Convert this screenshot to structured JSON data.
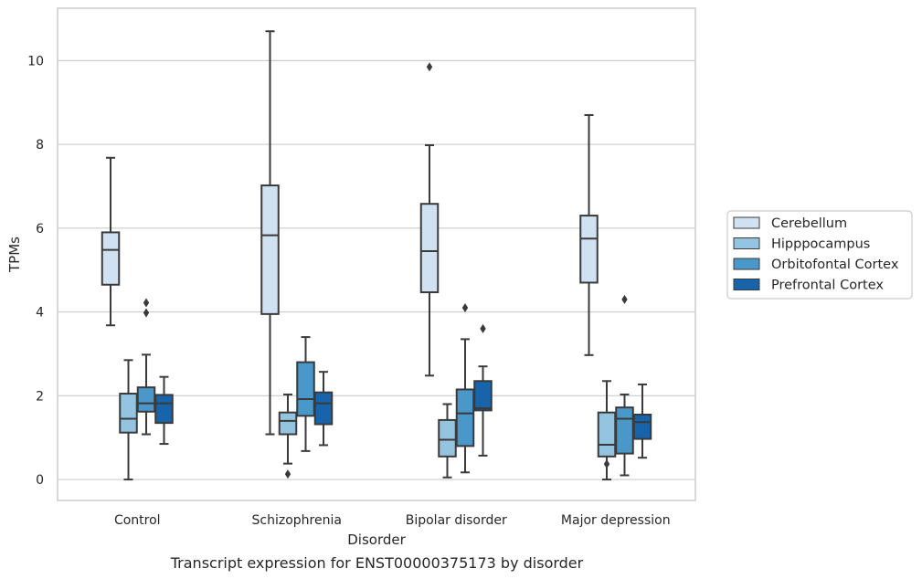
{
  "chart_data": {
    "type": "box",
    "xlabel": "Disorder",
    "ylabel": "TPMs",
    "caption": "Transcript expression for ENST00000375173 by disorder",
    "ylim": [
      -0.5,
      11.25
    ],
    "yticks": [
      0,
      2,
      4,
      6,
      8,
      10
    ],
    "grid": "horizontal",
    "legend_position": "right",
    "categories": [
      "Control",
      "Schizophrenia",
      "Bipolar disorder",
      "Major depression"
    ],
    "series": [
      {
        "name": "Cerebellum",
        "color": "#d0e1f2",
        "boxes": [
          {
            "whislo": 3.68,
            "q1": 4.65,
            "med": 5.48,
            "q3": 5.9,
            "whishi": 7.68,
            "fliers": []
          },
          {
            "whislo": 1.08,
            "q1": 3.95,
            "med": 5.83,
            "q3": 7.02,
            "whishi": 10.7,
            "fliers": []
          },
          {
            "whislo": 2.48,
            "q1": 4.47,
            "med": 5.45,
            "q3": 6.58,
            "whishi": 7.98,
            "fliers": [
              9.85
            ]
          },
          {
            "whislo": 2.97,
            "q1": 4.7,
            "med": 5.75,
            "q3": 6.3,
            "whishi": 8.7,
            "fliers": []
          }
        ]
      },
      {
        "name": "Hipppocampus",
        "color": "#94c4df",
        "boxes": [
          {
            "whislo": 0.0,
            "q1": 1.12,
            "med": 1.45,
            "q3": 2.05,
            "whishi": 2.85,
            "fliers": []
          },
          {
            "whislo": 0.38,
            "q1": 1.08,
            "med": 1.4,
            "q3": 1.6,
            "whishi": 2.03,
            "fliers": [
              0.13
            ]
          },
          {
            "whislo": 0.05,
            "q1": 0.55,
            "med": 0.95,
            "q3": 1.42,
            "whishi": 1.8,
            "fliers": []
          },
          {
            "whislo": 0.0,
            "q1": 0.55,
            "med": 0.83,
            "q3": 1.6,
            "whishi": 2.35,
            "fliers": [
              0.37
            ]
          }
        ]
      },
      {
        "name": "Orbitofontal Cortex",
        "color": "#4a98c9",
        "boxes": [
          {
            "whislo": 1.08,
            "q1": 1.62,
            "med": 1.82,
            "q3": 2.2,
            "whishi": 2.98,
            "fliers": [
              4.22,
              3.98
            ]
          },
          {
            "whislo": 0.68,
            "q1": 1.52,
            "med": 1.92,
            "q3": 2.8,
            "whishi": 3.4,
            "fliers": []
          },
          {
            "whislo": 0.17,
            "q1": 0.8,
            "med": 1.58,
            "q3": 2.15,
            "whishi": 3.35,
            "fliers": [
              4.1
            ]
          },
          {
            "whislo": 0.1,
            "q1": 0.62,
            "med": 1.45,
            "q3": 1.72,
            "whishi": 2.03,
            "fliers": [
              4.3
            ]
          }
        ]
      },
      {
        "name": "Prefrontal Cortex",
        "color": "#1764ab",
        "boxes": [
          {
            "whislo": 0.85,
            "q1": 1.35,
            "med": 1.82,
            "q3": 2.02,
            "whishi": 2.45,
            "fliers": []
          },
          {
            "whislo": 0.82,
            "q1": 1.32,
            "med": 1.82,
            "q3": 2.08,
            "whishi": 2.57,
            "fliers": []
          },
          {
            "whislo": 0.57,
            "q1": 1.65,
            "med": 1.7,
            "q3": 2.35,
            "whishi": 2.7,
            "fliers": [
              3.6
            ]
          },
          {
            "whislo": 0.52,
            "q1": 0.97,
            "med": 1.37,
            "q3": 1.55,
            "whishi": 2.27,
            "fliers": []
          }
        ]
      }
    ]
  }
}
